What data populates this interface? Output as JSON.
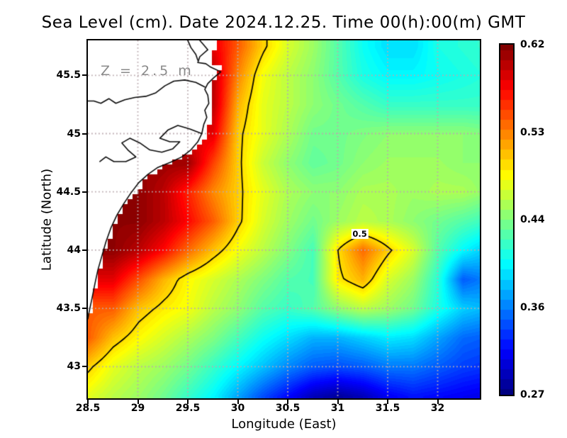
{
  "title": "Sea Level (cm). Date 2024.12.25. Time 00(h):00(m) GMT",
  "chart_data": {
    "type": "heatmap",
    "title": "Sea Level (cm). Date 2024.12.25. Time 00(h):00(m) GMT",
    "xlabel": "Longitude (East)",
    "ylabel": "Latitude (North)",
    "xlim": [
      28.5,
      32.42
    ],
    "ylim": [
      42.73,
      45.8
    ],
    "grid_on": true,
    "annotation": "Z = 2.5 m",
    "contour_level": 0.5,
    "contour_label": {
      "text": "0.5",
      "lon": 31.22,
      "lat": 44.14
    },
    "x_ticks": [
      {
        "value": 28.5,
        "label": "28.5"
      },
      {
        "value": 29,
        "label": "29"
      },
      {
        "value": 29.5,
        "label": "29.5"
      },
      {
        "value": 30,
        "label": "30"
      },
      {
        "value": 30.5,
        "label": "30.5"
      },
      {
        "value": 31,
        "label": "31"
      },
      {
        "value": 31.5,
        "label": "31.5"
      },
      {
        "value": 32,
        "label": "32"
      }
    ],
    "y_ticks": [
      {
        "value": 45.5,
        "label": "45.5"
      },
      {
        "value": 45,
        "label": "45"
      },
      {
        "value": 44.5,
        "label": "44.5"
      },
      {
        "value": 44,
        "label": "44"
      },
      {
        "value": 43.5,
        "label": "43.5"
      },
      {
        "value": 43,
        "label": "43"
      }
    ],
    "colorbar": {
      "min": 0.27,
      "max": 0.62,
      "colormap": "jet",
      "labels": [
        "0.62",
        "0.53",
        "0.44",
        "0.36",
        "0.27"
      ],
      "fracs": [
        0,
        0.25,
        0.5,
        0.75,
        1
      ]
    },
    "grid": {
      "lons": [
        28.5,
        28.75,
        29,
        29.25,
        29.5,
        29.75,
        30,
        30.25,
        30.5,
        30.75,
        31,
        31.25,
        31.5,
        31.75,
        32,
        32.25,
        32.5
      ],
      "lats": [
        45.75,
        45.5,
        45.25,
        45,
        44.75,
        44.5,
        44.25,
        44,
        43.75,
        43.5,
        43.25,
        43,
        42.75
      ],
      "values": [
        [
          null,
          null,
          null,
          null,
          null,
          0.585,
          0.545,
          0.505,
          0.475,
          0.455,
          0.43,
          0.405,
          0.39,
          0.39,
          0.41,
          0.415,
          0.42
        ],
        [
          null,
          null,
          null,
          null,
          null,
          0.6,
          0.53,
          0.485,
          0.465,
          0.45,
          0.43,
          0.41,
          0.4,
          0.4,
          0.405,
          0.41,
          0.415
        ],
        [
          null,
          null,
          null,
          null,
          null,
          0.6,
          0.515,
          0.48,
          0.465,
          0.45,
          0.44,
          0.43,
          0.42,
          0.42,
          0.42,
          0.42,
          0.42
        ],
        [
          null,
          null,
          null,
          null,
          null,
          0.585,
          0.505,
          0.48,
          0.46,
          0.44,
          0.44,
          0.445,
          0.45,
          0.45,
          0.45,
          0.45,
          0.445
        ],
        [
          null,
          null,
          null,
          null,
          0.61,
          0.555,
          0.505,
          0.47,
          0.45,
          0.435,
          0.44,
          0.45,
          0.455,
          0.455,
          0.455,
          0.45,
          0.45
        ],
        [
          null,
          null,
          0.615,
          0.6,
          0.565,
          0.53,
          0.505,
          0.48,
          0.46,
          0.45,
          0.45,
          0.46,
          0.46,
          0.455,
          0.46,
          0.46,
          0.45
        ],
        [
          null,
          null,
          0.615,
          0.6,
          0.575,
          0.545,
          0.505,
          0.475,
          0.455,
          0.44,
          0.455,
          0.465,
          0.46,
          0.45,
          0.44,
          0.43,
          0.42
        ],
        [
          null,
          0.615,
          0.6,
          0.575,
          0.54,
          0.51,
          0.485,
          0.465,
          0.445,
          0.425,
          0.5,
          0.54,
          0.505,
          0.475,
          0.43,
          0.4,
          0.38
        ],
        [
          null,
          0.585,
          0.55,
          0.515,
          0.49,
          0.475,
          0.46,
          0.445,
          0.43,
          0.425,
          0.495,
          0.515,
          0.475,
          0.455,
          0.415,
          0.345,
          0.36
        ],
        [
          null,
          0.545,
          0.51,
          0.495,
          0.485,
          0.465,
          0.45,
          0.43,
          0.42,
          0.43,
          0.45,
          0.465,
          0.455,
          0.44,
          0.41,
          0.385,
          0.375
        ],
        [
          0.545,
          0.51,
          0.49,
          0.475,
          0.46,
          0.445,
          0.425,
          0.405,
          0.39,
          0.375,
          0.375,
          0.385,
          0.395,
          0.39,
          0.37,
          0.35,
          0.345
        ],
        [
          0.505,
          0.48,
          0.465,
          0.455,
          0.44,
          0.42,
          0.4,
          0.38,
          0.36,
          0.345,
          0.34,
          0.345,
          0.355,
          0.355,
          0.345,
          0.335,
          0.33
        ],
        [
          0.48,
          0.465,
          0.455,
          0.44,
          0.42,
          0.4,
          0.37,
          0.34,
          0.315,
          0.29,
          0.28,
          0.29,
          0.31,
          0.32,
          0.315,
          0.31,
          0.305
        ]
      ]
    },
    "map": {
      "mask_edge": [
        [
          29.82,
          45.8
        ],
        [
          29.8,
          45.74
        ],
        [
          29.72,
          45.66
        ],
        [
          29.76,
          45.6
        ],
        [
          29.84,
          45.56
        ],
        [
          29.8,
          45.52
        ],
        [
          29.76,
          45.45
        ],
        [
          29.72,
          45.38
        ],
        [
          29.75,
          45.3
        ],
        [
          29.71,
          45.22
        ],
        [
          29.74,
          45.14
        ],
        [
          29.7,
          45.06
        ],
        [
          29.68,
          44.98
        ],
        [
          29.62,
          44.92
        ],
        [
          29.52,
          44.85
        ],
        [
          29.4,
          44.78
        ],
        [
          29.26,
          44.72
        ],
        [
          29.14,
          44.66
        ],
        [
          29.05,
          44.58
        ],
        [
          28.97,
          44.5
        ],
        [
          28.89,
          44.41
        ],
        [
          28.82,
          44.31
        ],
        [
          28.76,
          44.21
        ],
        [
          28.71,
          44.1
        ],
        [
          28.66,
          43.98
        ],
        [
          28.62,
          43.86
        ],
        [
          28.585,
          43.74
        ],
        [
          28.56,
          43.62
        ],
        [
          28.53,
          43.5
        ],
        [
          28.5,
          43.41
        ]
      ],
      "coastlines": [
        [
          [
            29.62,
            45.8
          ],
          [
            29.66,
            45.76
          ],
          [
            29.7,
            45.72
          ],
          [
            29.62,
            45.66
          ],
          [
            29.6,
            45.61
          ],
          [
            29.68,
            45.6
          ],
          [
            29.73,
            45.57
          ],
          [
            29.83,
            45.53
          ],
          [
            29.76,
            45.48
          ],
          [
            29.7,
            45.43
          ],
          [
            29.67,
            45.38
          ],
          [
            29.7,
            45.33
          ],
          [
            29.71,
            45.26
          ],
          [
            29.67,
            45.2
          ],
          [
            29.69,
            45.14
          ],
          [
            29.66,
            45.08
          ],
          [
            29.64,
            45.0
          ],
          [
            29.6,
            44.93
          ],
          [
            29.53,
            44.86
          ],
          [
            29.44,
            44.8
          ],
          [
            29.33,
            44.755
          ],
          [
            29.2,
            44.71
          ],
          [
            29.1,
            44.65
          ],
          [
            29.01,
            44.58
          ],
          [
            28.93,
            44.49
          ],
          [
            28.86,
            44.4
          ],
          [
            28.79,
            44.3
          ],
          [
            28.73,
            44.19
          ],
          [
            28.68,
            44.07
          ],
          [
            28.64,
            43.95
          ],
          [
            28.6,
            43.83
          ],
          [
            28.57,
            43.71
          ],
          [
            28.54,
            43.58
          ],
          [
            28.51,
            43.46
          ],
          [
            28.5,
            43.41
          ]
        ],
        [
          [
            29.5,
            45.8
          ],
          [
            29.53,
            45.74
          ],
          [
            29.58,
            45.68
          ],
          [
            29.6,
            45.63
          ]
        ],
        [
          [
            29.67,
            45.4
          ],
          [
            29.58,
            45.44
          ],
          [
            29.47,
            45.46
          ],
          [
            29.36,
            45.45
          ],
          [
            29.27,
            45.41
          ],
          [
            29.18,
            45.35
          ],
          [
            29.08,
            45.32
          ],
          [
            28.97,
            45.31
          ],
          [
            28.87,
            45.29
          ],
          [
            28.78,
            45.26
          ],
          [
            28.71,
            45.3
          ],
          [
            28.63,
            45.26
          ],
          [
            28.56,
            45.28
          ],
          [
            28.5,
            45.28
          ]
        ],
        [
          [
            29.64,
            45.0
          ],
          [
            29.52,
            45.04
          ],
          [
            29.4,
            45.07
          ],
          [
            29.3,
            45.03
          ],
          [
            29.22,
            44.96
          ],
          [
            29.32,
            44.93
          ],
          [
            29.42,
            44.93
          ],
          [
            29.35,
            44.87
          ],
          [
            29.24,
            44.84
          ],
          [
            29.12,
            44.86
          ],
          [
            29.02,
            44.92
          ],
          [
            28.92,
            44.96
          ],
          [
            28.84,
            44.92
          ],
          [
            28.9,
            44.86
          ],
          [
            28.98,
            44.8
          ],
          [
            28.88,
            44.76
          ],
          [
            28.76,
            44.76
          ],
          [
            28.68,
            44.8
          ],
          [
            28.62,
            44.76
          ]
        ]
      ]
    }
  }
}
